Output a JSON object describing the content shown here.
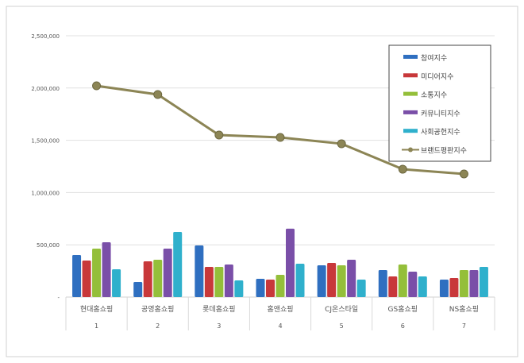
{
  "chart_data": {
    "type": "bar",
    "categories": [
      "현대홈쇼핑",
      "공영홈쇼핑",
      "롯데홈쇼핑",
      "홈앤쇼핑",
      "CJ온스타일",
      "GS홈쇼핑",
      "NS홈쇼핑"
    ],
    "ranks": [
      "1",
      "2",
      "3",
      "4",
      "5",
      "6",
      "7"
    ],
    "ylim": [
      0,
      2500000
    ],
    "yticks": [
      0,
      500000,
      1000000,
      1500000,
      2000000,
      2500000
    ],
    "ytick_labels": [
      "-",
      "500,000",
      "1,000,000",
      "1,500,000",
      "2,000,000",
      "2,500,000"
    ],
    "grid": true,
    "legend_position": "top-right",
    "series": [
      {
        "name": "참여지수",
        "type": "bar",
        "color": "#2f6fc0",
        "values": [
          403000,
          144000,
          494000,
          175000,
          304000,
          258000,
          167000
        ]
      },
      {
        "name": "미디어지수",
        "type": "bar",
        "color": "#c8383a",
        "values": [
          350000,
          342000,
          289000,
          167000,
          327000,
          198000,
          182000
        ]
      },
      {
        "name": "소통지수",
        "type": "bar",
        "color": "#94bf3a",
        "values": [
          464000,
          357000,
          289000,
          213000,
          304000,
          312000,
          258000
        ]
      },
      {
        "name": "커뮤니티지수",
        "type": "bar",
        "color": "#7a4fa8",
        "values": [
          524000,
          464000,
          312000,
          654000,
          357000,
          243000,
          258000
        ]
      },
      {
        "name": "사회공헌지수",
        "type": "bar",
        "color": "#2fb0cc",
        "values": [
          266000,
          623000,
          160000,
          319000,
          167000,
          198000,
          289000
        ]
      },
      {
        "name": "브랜드평판지수",
        "type": "line",
        "color": "#8c8555",
        "values": [
          2021000,
          1938000,
          1550000,
          1527000,
          1467000,
          1223000,
          1178000
        ]
      }
    ]
  }
}
